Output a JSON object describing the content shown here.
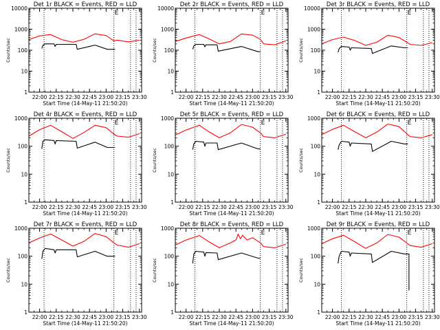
{
  "figure": {
    "background": "#ffffff",
    "axis_color": "#000000"
  },
  "chart_data": [
    {
      "type": "line",
      "title": "Det 1r BLACK = Events, RED = LLD",
      "xlabel": "Start Time (14-May-11 21:50:20)",
      "ylabel": "Counts/sec",
      "xticks": [
        "22:00",
        "22:15",
        "22:30",
        "22:45",
        "23:00",
        "23:15",
        "23:30"
      ],
      "xlim": [
        "21:50:20",
        "23:32:00"
      ],
      "ylim": [
        1,
        10000
      ],
      "ylog": true,
      "yticks": [
        "1",
        "10",
        "100",
        "1000",
        "10000"
      ],
      "markers": [
        {
          "label": "E",
          "x": "23:07"
        }
      ],
      "vlines": [
        "22:04",
        "23:07",
        "23:22",
        "23:27"
      ],
      "series": [
        {
          "color": "#ff0000",
          "x": [
            "21:50:20",
            "22:00",
            "22:10",
            "22:20",
            "22:30",
            "22:40",
            "22:50",
            "23:00",
            "23:07",
            "23:10",
            "23:20",
            "23:30"
          ],
          "values": [
            320,
            480,
            560,
            320,
            240,
            330,
            600,
            500,
            280,
            300,
            250,
            300
          ]
        },
        {
          "color": "#000000",
          "x": [
            "22:02",
            "22:03",
            "22:05",
            "22:13",
            "22:14",
            "22:15",
            "22:33",
            "22:34",
            "22:50",
            "23:01",
            "23:02",
            "23:03",
            "23:08"
          ],
          "values": [
            120,
            170,
            200,
            200,
            150,
            190,
            190,
            110,
            175,
            110,
            110,
            110,
            110
          ]
        }
      ]
    },
    {
      "type": "line",
      "title": "Det 2r BLACK = Events, RED = LLD",
      "xlabel": "Start Time (14-May-11 21:50:20)",
      "ylabel": "Counts/sec",
      "xticks": [
        "22:00",
        "22:15",
        "22:30",
        "22:45",
        "23:00",
        "23:15",
        "23:30"
      ],
      "xlim": [
        "21:50:20",
        "23:32:00"
      ],
      "ylim": [
        1,
        10000
      ],
      "ylog": true,
      "yticks": [
        "1",
        "10",
        "100",
        "1000",
        "10000"
      ],
      "markers": [
        {
          "label": "E",
          "x": "23:07"
        }
      ],
      "vlines": [
        "22:08",
        "23:07",
        "23:22",
        "23:27"
      ],
      "series": [
        {
          "color": "#ff0000",
          "x": [
            "21:50:20",
            "22:00",
            "22:12",
            "22:20",
            "22:30",
            "22:40",
            "22:50",
            "23:00",
            "23:07",
            "23:10",
            "23:20",
            "23:30"
          ],
          "values": [
            260,
            380,
            560,
            360,
            200,
            260,
            600,
            520,
            330,
            200,
            180,
            280
          ]
        },
        {
          "color": "#000000",
          "x": [
            "22:06",
            "22:07",
            "22:09",
            "22:16",
            "22:17",
            "22:18",
            "22:28",
            "22:29",
            "22:50",
            "23:05",
            "23:06",
            "23:07"
          ],
          "values": [
            110,
            160,
            190,
            190,
            145,
            180,
            180,
            90,
            150,
            85,
            85,
            85
          ]
        }
      ]
    },
    {
      "type": "line",
      "title": "Det 3r BLACK = Events, RED = LLD",
      "xlabel": "Start Time (14-May-11 21:50:20)",
      "ylabel": "Counts/sec",
      "xticks": [
        "22:00",
        "22:15",
        "22:30",
        "22:45",
        "23:00",
        "23:15",
        "23:30"
      ],
      "xlim": [
        "21:50:20",
        "23:32:00"
      ],
      "ylim": [
        1,
        10000
      ],
      "ylog": true,
      "yticks": [
        "1",
        "10",
        "100",
        "1000",
        "10000"
      ],
      "markers": [
        {
          "label": "E",
          "x": "23:07"
        }
      ],
      "vlines": [
        "22:08",
        "23:07",
        "23:22",
        "23:27"
      ],
      "series": [
        {
          "color": "#ff0000",
          "x": [
            "21:50:20",
            "22:00",
            "22:10",
            "22:20",
            "22:30",
            "22:40",
            "22:50",
            "23:00",
            "23:07",
            "23:10",
            "23:20",
            "23:30"
          ],
          "values": [
            200,
            320,
            420,
            290,
            170,
            240,
            520,
            400,
            240,
            190,
            170,
            230
          ]
        },
        {
          "color": "#000000",
          "x": [
            "22:05",
            "22:06",
            "22:08",
            "22:15",
            "22:16",
            "22:17",
            "22:35",
            "22:36",
            "22:53",
            "23:05",
            "23:06",
            "23:08"
          ],
          "values": [
            80,
            120,
            150,
            140,
            100,
            130,
            120,
            70,
            160,
            130,
            130,
            130
          ]
        }
      ]
    },
    {
      "type": "line",
      "title": "Det 4r BLACK = Events, RED = LLD",
      "xlabel": "Start Time (14-May-11 21:50:20)",
      "ylabel": "Counts/sec",
      "xticks": [
        "22:00",
        "22:15",
        "22:30",
        "22:45",
        "23:00",
        "23:15",
        "23:30"
      ],
      "xlim": [
        "21:50:20",
        "23:32:00"
      ],
      "ylim": [
        1,
        1000
      ],
      "ylog": true,
      "yticks": [
        "1",
        "10",
        "100",
        "1000"
      ],
      "markers": [
        {
          "label": "E",
          "x": "23:07"
        }
      ],
      "vlines": [
        "22:04",
        "23:07",
        "23:22",
        "23:27"
      ],
      "series": [
        {
          "color": "#ff0000",
          "x": [
            "21:50:20",
            "22:00",
            "22:10",
            "22:20",
            "22:30",
            "22:40",
            "22:50",
            "23:00",
            "23:07",
            "23:10",
            "23:20",
            "23:30"
          ],
          "values": [
            230,
            390,
            560,
            330,
            190,
            310,
            560,
            460,
            270,
            230,
            210,
            280
          ]
        },
        {
          "color": "#000000",
          "x": [
            "22:02",
            "22:03",
            "22:05",
            "22:13",
            "22:14",
            "22:15",
            "22:33",
            "22:34",
            "22:50",
            "23:01",
            "23:02",
            "23:03",
            "23:08"
          ],
          "values": [
            80,
            150,
            170,
            160,
            120,
            160,
            150,
            85,
            140,
            90,
            90,
            90,
            90
          ]
        }
      ]
    },
    {
      "type": "line",
      "title": "Det 5r BLACK = Events, RED = LLD",
      "xlabel": "Start Time (14-May-11 21:50:20)",
      "ylabel": "Counts/sec",
      "xticks": [
        "22:00",
        "22:15",
        "22:30",
        "22:45",
        "23:00",
        "23:15",
        "23:30"
      ],
      "xlim": [
        "21:50:20",
        "23:32:00"
      ],
      "ylim": [
        1,
        1000
      ],
      "ylog": true,
      "yticks": [
        "1",
        "10",
        "100",
        "1000"
      ],
      "markers": [
        {
          "label": "E",
          "x": "23:07"
        }
      ],
      "vlines": [
        "22:08",
        "23:07",
        "23:22",
        "23:27"
      ],
      "series": [
        {
          "color": "#ff0000",
          "x": [
            "21:50:20",
            "22:00",
            "22:12",
            "22:20",
            "22:30",
            "22:40",
            "22:50",
            "23:00",
            "23:07",
            "23:10",
            "23:20",
            "23:30"
          ],
          "values": [
            250,
            380,
            560,
            340,
            200,
            300,
            600,
            480,
            300,
            220,
            200,
            270
          ]
        },
        {
          "color": "#000000",
          "x": [
            "22:06",
            "22:07",
            "22:09",
            "22:16",
            "22:17",
            "22:18",
            "22:28",
            "22:29",
            "22:50",
            "23:05",
            "23:06",
            "23:07"
          ],
          "values": [
            75,
            120,
            150,
            140,
            100,
            130,
            130,
            75,
            130,
            80,
            80,
            80
          ]
        }
      ]
    },
    {
      "type": "line",
      "title": "Det 6r BLACK = Events, RED = LLD",
      "xlabel": "Start Time (14-May-11 21:50:20)",
      "ylabel": "Counts/sec",
      "xticks": [
        "22:00",
        "22:15",
        "22:30",
        "22:45",
        "23:00",
        "23:15",
        "23:30"
      ],
      "xlim": [
        "21:50:20",
        "23:32:00"
      ],
      "ylim": [
        1,
        1000
      ],
      "ylog": true,
      "yticks": [
        "1",
        "10",
        "100",
        "1000"
      ],
      "markers": [
        {
          "label": "E",
          "x": "23:07"
        }
      ],
      "vlines": [
        "22:08",
        "23:07",
        "23:22",
        "23:27"
      ],
      "series": [
        {
          "color": "#ff0000",
          "x": [
            "21:50:20",
            "22:00",
            "22:10",
            "22:20",
            "22:30",
            "22:40",
            "22:50",
            "23:00",
            "23:07",
            "23:10",
            "23:20",
            "23:30"
          ],
          "values": [
            260,
            400,
            560,
            330,
            200,
            320,
            620,
            500,
            280,
            220,
            200,
            260
          ]
        },
        {
          "color": "#000000",
          "x": [
            "22:05",
            "22:06",
            "22:08",
            "22:15",
            "22:16",
            "22:17",
            "22:35",
            "22:36",
            "22:53",
            "23:05",
            "23:06",
            "23:08"
          ],
          "values": [
            75,
            110,
            150,
            140,
            100,
            130,
            120,
            65,
            150,
            120,
            120,
            120
          ]
        }
      ]
    },
    {
      "type": "line",
      "title": "Det 7r BLACK = Events, RED = LLD",
      "xlabel": "Start Time (14-May-11 21:50:20)",
      "ylabel": "Counts/sec",
      "xticks": [
        "22:00",
        "22:15",
        "22:30",
        "22:45",
        "23:00",
        "23:15",
        "23:30"
      ],
      "xlim": [
        "21:50:20",
        "23:32:00"
      ],
      "ylim": [
        1,
        1000
      ],
      "ylog": true,
      "yticks": [
        "1",
        "10",
        "100",
        "1000"
      ],
      "markers": [
        {
          "label": "E",
          "x": "23:07"
        }
      ],
      "vlines": [
        "22:04",
        "23:07",
        "23:22",
        "23:27"
      ],
      "series": [
        {
          "color": "#ff0000",
          "x": [
            "21:50:20",
            "22:00",
            "22:10",
            "22:20",
            "22:30",
            "22:40",
            "22:50",
            "23:00",
            "23:07",
            "23:10",
            "23:20",
            "23:30"
          ],
          "values": [
            300,
            450,
            620,
            380,
            230,
            340,
            650,
            500,
            300,
            250,
            210,
            280
          ]
        },
        {
          "color": "#000000",
          "x": [
            "22:02",
            "22:03",
            "22:05",
            "22:13",
            "22:14",
            "22:15",
            "22:33",
            "22:34",
            "22:50",
            "23:01",
            "23:02",
            "23:03",
            "23:08"
          ],
          "values": [
            80,
            150,
            190,
            170,
            130,
            170,
            170,
            95,
            150,
            100,
            100,
            100,
            100
          ]
        }
      ]
    },
    {
      "type": "line",
      "title": "Det 8r BLACK = Events, RED = LLD",
      "xlabel": "Start Time (14-May-11 21:50:20)",
      "ylabel": "Counts/sec",
      "xticks": [
        "22:00",
        "22:15",
        "22:30",
        "22:45",
        "23:00",
        "23:15",
        "23:30"
      ],
      "xlim": [
        "21:50:20",
        "23:32:00"
      ],
      "ylim": [
        1,
        1000
      ],
      "ylog": true,
      "yticks": [
        "1",
        "10",
        "100",
        "1000"
      ],
      "markers": [
        {
          "label": "E",
          "x": "23:07"
        }
      ],
      "vlines": [
        "22:08",
        "23:07",
        "23:22",
        "23:27"
      ],
      "series": [
        {
          "color": "#ff0000",
          "x": [
            "21:50:20",
            "22:00",
            "22:12",
            "22:20",
            "22:30",
            "22:40",
            "22:45",
            "22:47",
            "22:49",
            "22:51",
            "22:55",
            "23:00",
            "23:07",
            "23:10",
            "23:20",
            "23:30"
          ],
          "values": [
            250,
            380,
            550,
            340,
            200,
            300,
            380,
            620,
            420,
            560,
            380,
            460,
            300,
            220,
            200,
            270
          ]
        },
        {
          "color": "#000000",
          "x": [
            "22:06",
            "22:07",
            "22:09",
            "22:16",
            "22:17",
            "22:18",
            "22:28",
            "22:29",
            "22:50",
            "23:05",
            "23:06",
            "23:07"
          ],
          "values": [
            55,
            120,
            150,
            140,
            100,
            135,
            130,
            75,
            130,
            85,
            85,
            85
          ]
        }
      ]
    },
    {
      "type": "line",
      "title": "Det 9r BLACK = Events, RED = LLD",
      "xlabel": "Start Time (14-May-11 21:50:20)",
      "ylabel": "Counts/sec",
      "xticks": [
        "22:00",
        "22:15",
        "22:30",
        "22:45",
        "23:00",
        "23:15",
        "23:30"
      ],
      "xlim": [
        "21:50:20",
        "23:32:00"
      ],
      "ylim": [
        1,
        1000
      ],
      "ylog": true,
      "yticks": [
        "1",
        "10",
        "100",
        "1000"
      ],
      "markers": [
        {
          "label": "E",
          "x": "23:07"
        }
      ],
      "vlines": [
        "22:08",
        "23:07",
        "23:22",
        "23:27"
      ],
      "series": [
        {
          "color": "#ff0000",
          "x": [
            "21:50:20",
            "22:00",
            "22:10",
            "22:20",
            "22:30",
            "22:40",
            "22:50",
            "23:00",
            "23:07",
            "23:10",
            "23:20",
            "23:30"
          ],
          "values": [
            280,
            420,
            560,
            330,
            190,
            300,
            600,
            480,
            300,
            240,
            210,
            280
          ]
        },
        {
          "color": "#000000",
          "x": [
            "22:05",
            "22:06",
            "22:08",
            "22:15",
            "22:16",
            "22:17",
            "22:35",
            "22:36",
            "22:53",
            "23:05",
            "23:06",
            "23:08",
            "23:09",
            "23:09"
          ],
          "values": [
            55,
            100,
            150,
            140,
            100,
            130,
            120,
            60,
            150,
            120,
            120,
            120,
            120,
            6
          ]
        }
      ]
    }
  ]
}
